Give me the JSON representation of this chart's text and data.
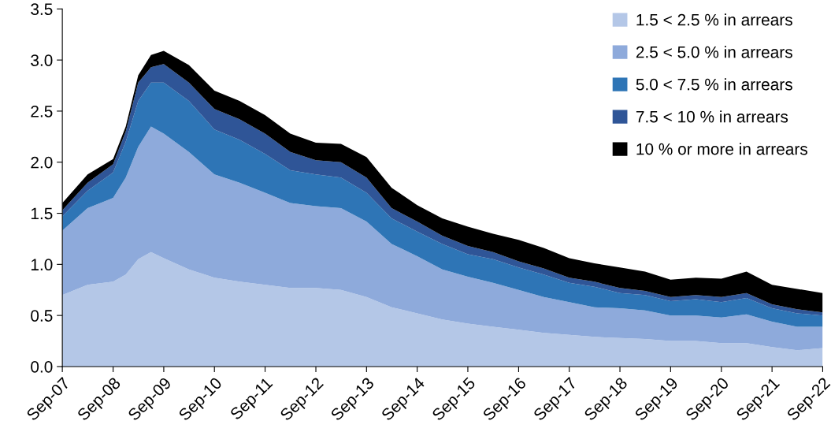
{
  "chart_data": {
    "type": "area",
    "stacked": true,
    "legend": "top right",
    "grid": false,
    "x": [
      "2007-09",
      "2008-03",
      "2008-09",
      "2008-12",
      "2009-03",
      "2009-06",
      "2009-09",
      "2010-03",
      "2010-09",
      "2011-03",
      "2011-09",
      "2012-03",
      "2012-09",
      "2013-03",
      "2013-09",
      "2014-03",
      "2014-09",
      "2015-03",
      "2015-09",
      "2016-03",
      "2016-09",
      "2017-03",
      "2017-09",
      "2018-03",
      "2018-09",
      "2019-03",
      "2019-09",
      "2020-03",
      "2020-09",
      "2021-03",
      "2021-09",
      "2022-03",
      "2022-09"
    ],
    "series": [
      {
        "name": "1.5 < 2.5 % in arrears",
        "color": "#b4c7e7",
        "values": [
          0.7,
          0.8,
          0.83,
          0.9,
          1.05,
          1.12,
          1.06,
          0.95,
          0.87,
          0.83,
          0.8,
          0.77,
          0.77,
          0.75,
          0.68,
          0.58,
          0.52,
          0.46,
          0.42,
          0.39,
          0.36,
          0.33,
          0.31,
          0.29,
          0.28,
          0.27,
          0.25,
          0.25,
          0.23,
          0.23,
          0.19,
          0.16,
          0.18
        ]
      },
      {
        "name": "2.5 < 5.0 % in arrears",
        "color": "#8eaadb",
        "values": [
          0.63,
          0.75,
          0.82,
          0.95,
          1.1,
          1.23,
          1.22,
          1.15,
          1.01,
          0.97,
          0.9,
          0.83,
          0.8,
          0.8,
          0.74,
          0.62,
          0.56,
          0.49,
          0.46,
          0.43,
          0.39,
          0.35,
          0.32,
          0.29,
          0.29,
          0.28,
          0.25,
          0.25,
          0.25,
          0.28,
          0.25,
          0.23,
          0.21
        ]
      },
      {
        "name": "5.0 < 7.5 % in arrears",
        "color": "#2e75b6",
        "values": [
          0.14,
          0.17,
          0.25,
          0.35,
          0.45,
          0.43,
          0.5,
          0.5,
          0.44,
          0.42,
          0.38,
          0.32,
          0.31,
          0.3,
          0.28,
          0.25,
          0.24,
          0.25,
          0.22,
          0.23,
          0.22,
          0.22,
          0.19,
          0.2,
          0.15,
          0.15,
          0.14,
          0.16,
          0.15,
          0.16,
          0.13,
          0.13,
          0.11
        ]
      },
      {
        "name": "7.5 < 10 % in arrears",
        "color": "#2f5597",
        "values": [
          0.06,
          0.08,
          0.08,
          0.1,
          0.18,
          0.15,
          0.18,
          0.18,
          0.2,
          0.2,
          0.2,
          0.18,
          0.14,
          0.15,
          0.15,
          0.1,
          0.1,
          0.08,
          0.08,
          0.07,
          0.06,
          0.06,
          0.05,
          0.05,
          0.05,
          0.04,
          0.04,
          0.04,
          0.05,
          0.05,
          0.04,
          0.04,
          0.03
        ]
      },
      {
        "name": "10 % or more in arrears",
        "color": "#000000",
        "values": [
          0.07,
          0.08,
          0.05,
          0.05,
          0.07,
          0.12,
          0.13,
          0.17,
          0.18,
          0.18,
          0.18,
          0.18,
          0.17,
          0.18,
          0.2,
          0.2,
          0.16,
          0.17,
          0.19,
          0.18,
          0.21,
          0.2,
          0.19,
          0.18,
          0.2,
          0.19,
          0.17,
          0.17,
          0.18,
          0.21,
          0.19,
          0.2,
          0.19
        ]
      }
    ],
    "xlim": [
      "2007-09",
      "2022-09"
    ],
    "xticks": [
      {
        "value": "2007-09",
        "label": "Sep-07"
      },
      {
        "value": "2008-09",
        "label": "Sep-08"
      },
      {
        "value": "2009-09",
        "label": "Sep-09"
      },
      {
        "value": "2010-09",
        "label": "Sep-10"
      },
      {
        "value": "2011-09",
        "label": "Sep-11"
      },
      {
        "value": "2012-09",
        "label": "Sep-12"
      },
      {
        "value": "2013-09",
        "label": "Sep-13"
      },
      {
        "value": "2014-09",
        "label": "Sep-14"
      },
      {
        "value": "2015-09",
        "label": "Sep-15"
      },
      {
        "value": "2016-09",
        "label": "Sep-16"
      },
      {
        "value": "2017-09",
        "label": "Sep-17"
      },
      {
        "value": "2018-09",
        "label": "Sep-18"
      },
      {
        "value": "2019-09",
        "label": "Sep-19"
      },
      {
        "value": "2020-09",
        "label": "Sep-20"
      },
      {
        "value": "2021-09",
        "label": "Sep-21"
      },
      {
        "value": "2022-09",
        "label": "Sep-22"
      }
    ],
    "ylim": [
      0,
      3.5
    ],
    "yticks": [
      {
        "value": 0,
        "label": "0.0"
      },
      {
        "value": 0.5,
        "label": "0.5"
      },
      {
        "value": 1,
        "label": "1.0"
      },
      {
        "value": 1.5,
        "label": "1.5"
      },
      {
        "value": 2,
        "label": "2.0"
      },
      {
        "value": 2.5,
        "label": "2.5"
      },
      {
        "value": 3,
        "label": "3.0"
      },
      {
        "value": 3.5,
        "label": "3.5"
      }
    ]
  }
}
